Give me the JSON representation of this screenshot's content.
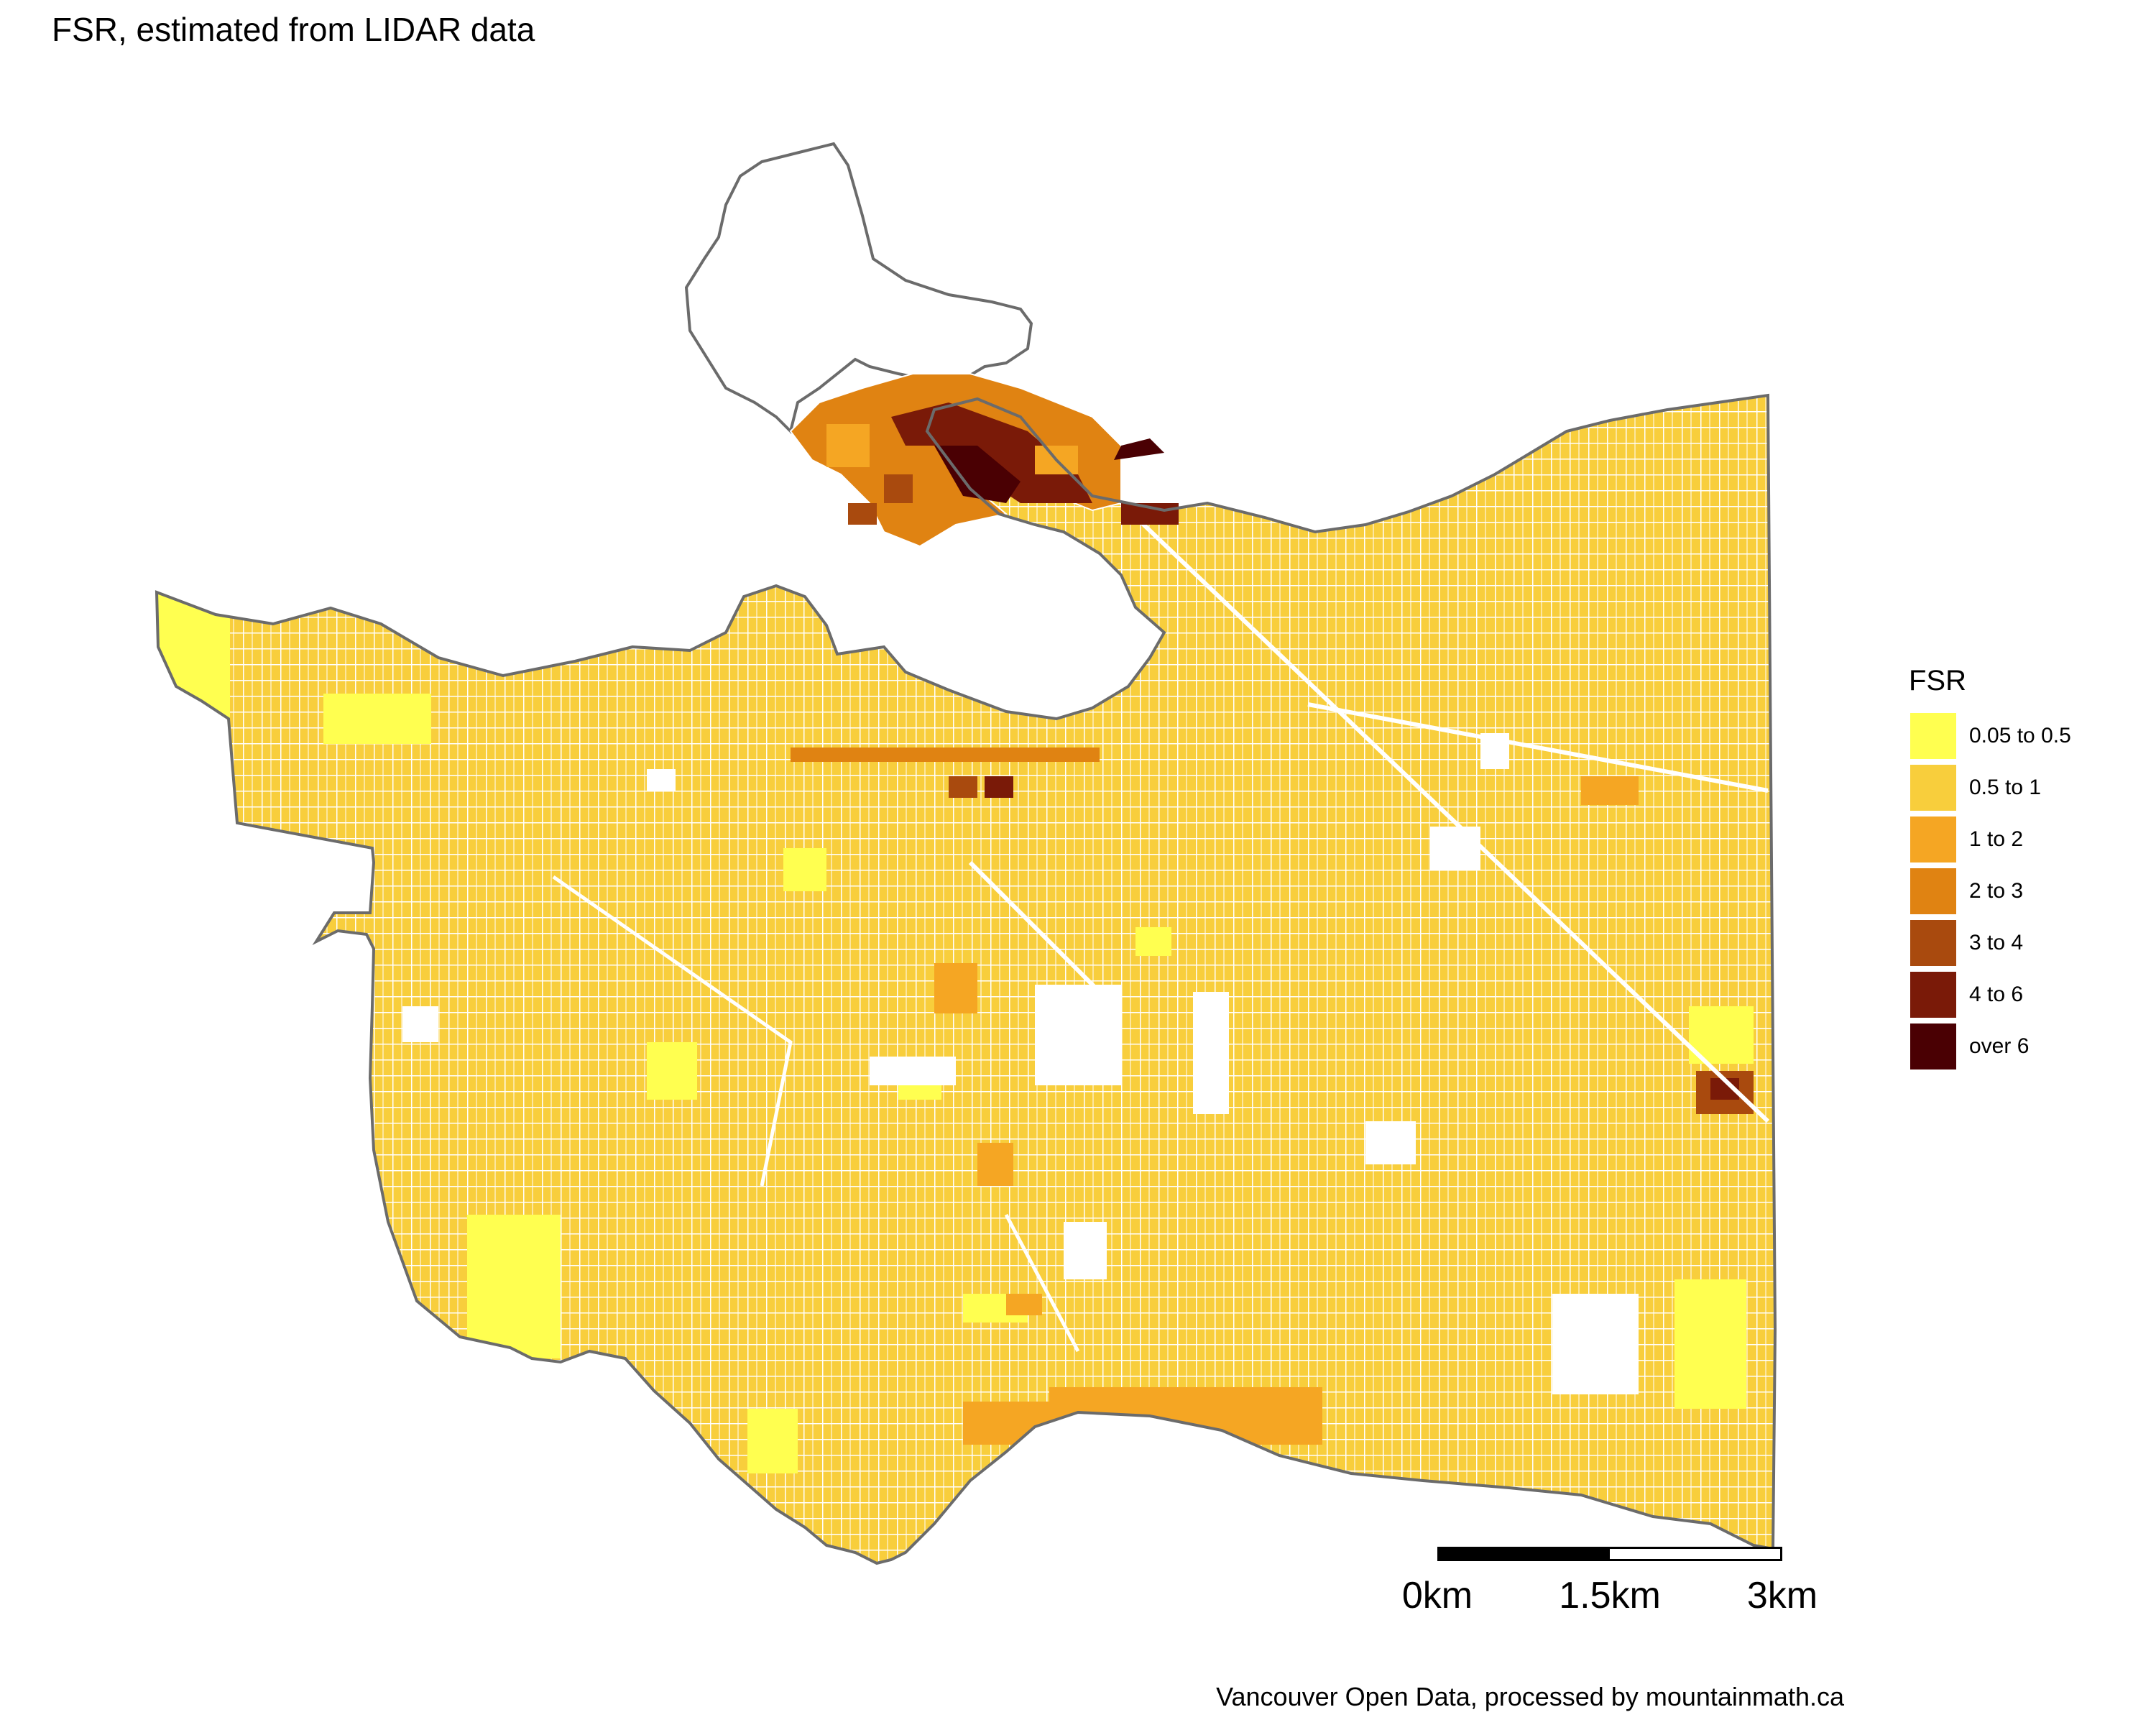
{
  "title": "FSR, estimated from LIDAR data",
  "legend": {
    "title": "FSR",
    "items": [
      {
        "label": "0.05 to 0.5",
        "color": "#FFFF50"
      },
      {
        "label": "0.5 to 1",
        "color": "#F8CE3C"
      },
      {
        "label": "1 to 2",
        "color": "#F5A623"
      },
      {
        "label": "2 to 3",
        "color": "#E08312"
      },
      {
        "label": "3 to 4",
        "color": "#A94A0E"
      },
      {
        "label": "4 to 6",
        "color": "#7A1A08"
      },
      {
        "label": "over 6",
        "color": "#4A0003"
      }
    ]
  },
  "scale_bar": {
    "labels": [
      "0km",
      "1.5km",
      "3km"
    ]
  },
  "caption": "Vancouver Open Data, processed by mountainmath.ca",
  "colors": {
    "boundary": "#6B6B6B",
    "background": "#FFFFFF"
  }
}
